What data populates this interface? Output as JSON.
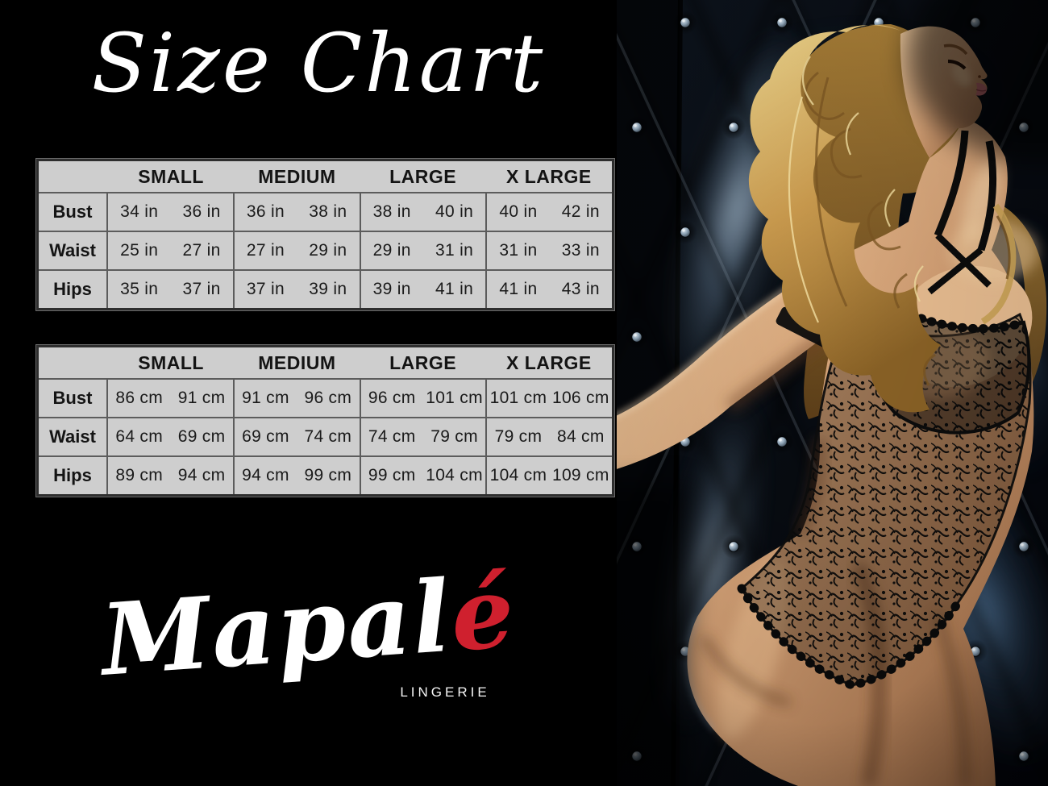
{
  "title": "Size Chart",
  "brand": {
    "name": "Mapalé",
    "name_main": "Mapal",
    "name_accent": "é",
    "subtitle": "LINGERIE",
    "accent_color": "#cf202e"
  },
  "colors": {
    "page_bg": "#000000",
    "title_color": "#ffffff",
    "table_bg": "#cecece",
    "table_line": "#5c5c5c",
    "table_text": "#141414"
  },
  "photo": {
    "alt": "Model with blonde curls in a black lace bodysuit leaning back against dark tufted upholstery",
    "palette": {
      "backdrop": "#0b121b",
      "leather_sheen": "#9fb6ca",
      "skin": "#d3a075",
      "hair": "#d9b468",
      "lace": "#0c0c0c",
      "lips": "#c06b70"
    }
  },
  "chart_data": [
    {
      "type": "table",
      "title": "Size Chart",
      "units": "inches",
      "columns": [
        "SMALL",
        "MEDIUM",
        "LARGE",
        "X LARGE"
      ],
      "rows": [
        {
          "label": "Bust",
          "cells": [
            [
              "34 in",
              "36 in"
            ],
            [
              "36 in",
              "38 in"
            ],
            [
              "38 in",
              "40 in"
            ],
            [
              "40 in",
              "42 in"
            ]
          ]
        },
        {
          "label": "Waist",
          "cells": [
            [
              "25 in",
              "27 in"
            ],
            [
              "27 in",
              "29 in"
            ],
            [
              "29 in",
              "31 in"
            ],
            [
              "31 in",
              "33 in"
            ]
          ]
        },
        {
          "label": "Hips",
          "cells": [
            [
              "35 in",
              "37 in"
            ],
            [
              "37 in",
              "39 in"
            ],
            [
              "39 in",
              "41 in"
            ],
            [
              "41 in",
              "43 in"
            ]
          ]
        }
      ]
    },
    {
      "type": "table",
      "title": "Size Chart",
      "units": "centimeters",
      "columns": [
        "SMALL",
        "MEDIUM",
        "LARGE",
        "X LARGE"
      ],
      "rows": [
        {
          "label": "Bust",
          "cells": [
            [
              "86 cm",
              "91 cm"
            ],
            [
              "91 cm",
              "96 cm"
            ],
            [
              "96 cm",
              "101 cm"
            ],
            [
              "101 cm",
              "106 cm"
            ]
          ]
        },
        {
          "label": "Waist",
          "cells": [
            [
              "64 cm",
              "69 cm"
            ],
            [
              "69 cm",
              "74 cm"
            ],
            [
              "74 cm",
              "79 cm"
            ],
            [
              "79 cm",
              "84 cm"
            ]
          ]
        },
        {
          "label": "Hips",
          "cells": [
            [
              "89 cm",
              "94 cm"
            ],
            [
              "94 cm",
              "99 cm"
            ],
            [
              "99 cm",
              "104 cm"
            ],
            [
              "104 cm",
              "109 cm"
            ]
          ]
        }
      ]
    }
  ]
}
